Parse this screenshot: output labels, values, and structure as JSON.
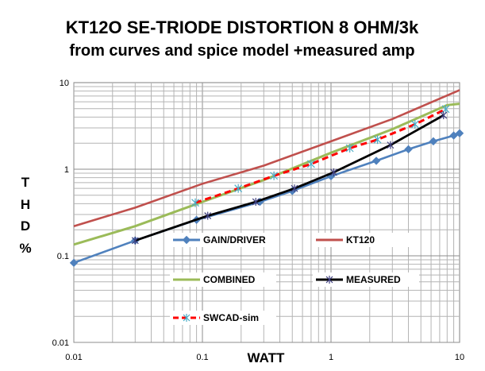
{
  "chart_data": {
    "type": "line",
    "title_line1": "KT12O SE-TRIODE DISTORTION 8 OHM/3k",
    "title_line2": "from curves and spice model +measured amp",
    "xlabel": "WATT",
    "ylabel": "THD %",
    "x_scale": "log",
    "y_scale": "log",
    "xlim": [
      0.01,
      10
    ],
    "ylim": [
      0.01,
      10
    ],
    "x_ticks": [
      "0.01",
      "0.1",
      "1",
      "10"
    ],
    "y_ticks": [
      "0.01",
      "0.1",
      "1",
      "10"
    ],
    "grid": true,
    "series": [
      {
        "name": "GAIN/DRIVER",
        "color": "#4f81bd",
        "marker": "diamond",
        "x": [
          0.01,
          0.03,
          0.09,
          0.28,
          0.5,
          1,
          2.25,
          4,
          6.25,
          9,
          10
        ],
        "y": [
          0.083,
          0.15,
          0.26,
          0.42,
          0.56,
          0.83,
          1.25,
          1.7,
          2.1,
          2.45,
          2.6
        ]
      },
      {
        "name": "KT120",
        "color": "#c0504d",
        "marker": "none",
        "x": [
          0.01,
          0.03,
          0.1,
          0.3,
          1,
          3,
          10
        ],
        "y": [
          0.22,
          0.36,
          0.68,
          1.1,
          2.1,
          3.8,
          8.2
        ]
      },
      {
        "name": "COMBINED",
        "color": "#9bbb59",
        "marker": "none",
        "x": [
          0.01,
          0.03,
          0.1,
          0.3,
          1,
          3,
          8,
          10
        ],
        "y": [
          0.135,
          0.22,
          0.42,
          0.75,
          1.55,
          2.9,
          5.5,
          5.7
        ]
      },
      {
        "name": "MEASURED",
        "color": "#000000",
        "marker": "star",
        "marker_x": [
          0.03,
          0.11,
          0.26,
          0.52,
          1.05,
          2.9,
          7.5
        ],
        "marker_y": [
          0.15,
          0.29,
          0.42,
          0.6,
          0.92,
          1.9,
          4.2
        ],
        "x": [
          0.03,
          0.11,
          0.26,
          0.52,
          1.05,
          2.9,
          7.5
        ],
        "y": [
          0.15,
          0.29,
          0.42,
          0.6,
          0.92,
          1.9,
          4.2
        ]
      },
      {
        "name": "SWCAD-sim",
        "color": "#ff0000",
        "marker": "star",
        "x": [
          0.088,
          0.19,
          0.36,
          0.7,
          1.4,
          2.3,
          4.5,
          7.8
        ],
        "y": [
          0.41,
          0.6,
          0.84,
          1.15,
          1.75,
          2.2,
          3.3,
          4.95
        ]
      }
    ],
    "legend": [
      {
        "name": "GAIN/DRIVER",
        "color": "#4f81bd",
        "marker": "diamond"
      },
      {
        "name": "KT120",
        "color": "#c0504d",
        "marker": "none"
      },
      {
        "name": "COMBINED",
        "color": "#9bbb59",
        "marker": "none"
      },
      {
        "name": "MEASURED",
        "color": "#000000",
        "marker": "star"
      },
      {
        "name": "SWCAD-sim",
        "color": "#ff0000",
        "marker": "star-dashed"
      }
    ],
    "ylabel_letters": [
      "T",
      "H",
      "D",
      "%"
    ]
  }
}
